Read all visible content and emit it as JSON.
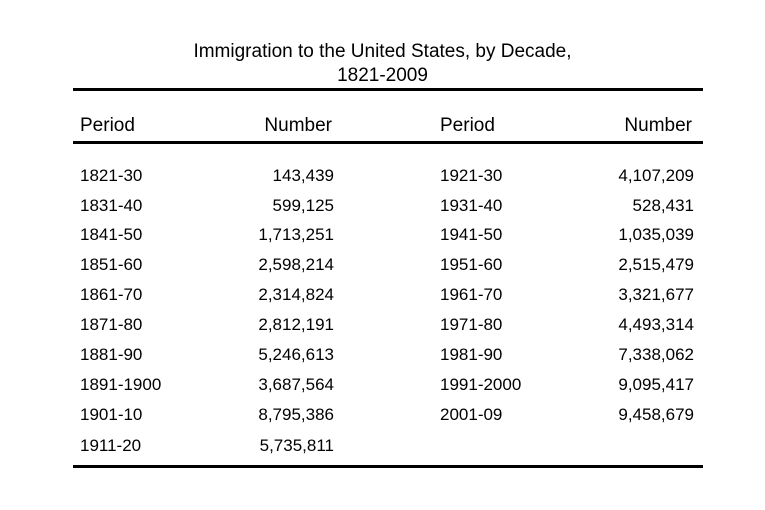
{
  "chart_data": {
    "type": "table",
    "title_line1": "Immigration to the United States, by Decade,",
    "title_line2": "1821-2009",
    "headers": [
      "Period",
      "Number",
      "Period",
      "Number"
    ],
    "left_rows": [
      {
        "period": "1821-30",
        "number": "143,439"
      },
      {
        "period": "1831-40",
        "number": "599,125"
      },
      {
        "period": "1841-50",
        "number": "1,713,251"
      },
      {
        "period": "1851-60",
        "number": "2,598,214"
      },
      {
        "period": "1861-70",
        "number": "2,314,824"
      },
      {
        "period": "1871-80",
        "number": "2,812,191"
      },
      {
        "period": "1881-90",
        "number": "5,246,613"
      },
      {
        "period": "1891-1900",
        "number": "3,687,564"
      },
      {
        "period": "1901-10",
        "number": "8,795,386"
      },
      {
        "period": "1911-20",
        "number": "5,735,811"
      }
    ],
    "right_rows": [
      {
        "period": "1921-30",
        "number": "4,107,209"
      },
      {
        "period": "1931-40",
        "number": "528,431"
      },
      {
        "period": "1941-50",
        "number": "1,035,039"
      },
      {
        "period": "1951-60",
        "number": "2,515,479"
      },
      {
        "period": "1961-70",
        "number": "3,321,677"
      },
      {
        "period": "1971-80",
        "number": "4,493,314"
      },
      {
        "period": "1981-90",
        "number": "7,338,062"
      },
      {
        "period": "1991-2000",
        "number": "9,095,417"
      },
      {
        "period": "2001-09",
        "number": "9,458,679"
      }
    ]
  }
}
